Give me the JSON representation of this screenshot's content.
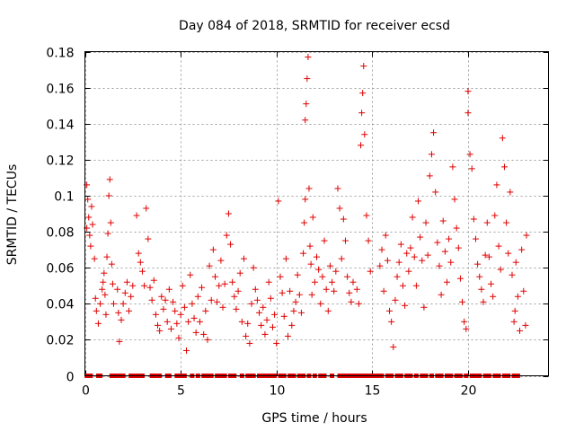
{
  "chart_data": {
    "type": "scatter",
    "title": "Day 084 of 2018, SRMTID for receiver ecsd",
    "xlabel": "GPS time / hours",
    "ylabel": "SRMTID / TECUs",
    "xlim": [
      0,
      24.2
    ],
    "ylim": [
      0,
      0.18
    ],
    "x_ticks": [
      0,
      5,
      10,
      15,
      20
    ],
    "x_tick_labels": [
      "0",
      "5",
      "10",
      "15",
      "20"
    ],
    "y_ticks": [
      0,
      0.02,
      0.04,
      0.06,
      0.08,
      0.1,
      0.12,
      0.14,
      0.16,
      0.18
    ],
    "y_tick_labels": [
      "0",
      "0.02",
      "0.04",
      "0.06",
      "0.08",
      "0.1",
      "0.12",
      "0.14",
      "0.16",
      "0.18"
    ],
    "grid": true,
    "marker": "plus",
    "color": "#e00000",
    "series": [
      {
        "name": "SRMTID",
        "points": [
          [
            0.1,
            0.106
          ],
          [
            0.15,
            0.098
          ],
          [
            0.2,
            0.088
          ],
          [
            0.1,
            0.082
          ],
          [
            0.25,
            0.078
          ],
          [
            0.3,
            0.072
          ],
          [
            0.35,
            0.094
          ],
          [
            0.4,
            0.084
          ],
          [
            0.5,
            0.065
          ],
          [
            0.55,
            0.043
          ],
          [
            0.6,
            0.036
          ],
          [
            0.7,
            0.029
          ],
          [
            0.8,
            0.04
          ],
          [
            0.9,
            0.048
          ],
          [
            0.95,
            0.052
          ],
          [
            1.0,
            0.057
          ],
          [
            1.05,
            0.045
          ],
          [
            1.1,
            0.034
          ],
          [
            1.15,
            0.066
          ],
          [
            1.2,
            0.079
          ],
          [
            1.25,
            0.1
          ],
          [
            1.3,
            0.109
          ],
          [
            1.35,
            0.085
          ],
          [
            1.4,
            0.062
          ],
          [
            1.45,
            0.051
          ],
          [
            1.5,
            0.04
          ],
          [
            1.7,
            0.048
          ],
          [
            1.75,
            0.035
          ],
          [
            1.8,
            0.019
          ],
          [
            1.9,
            0.031
          ],
          [
            2.0,
            0.04
          ],
          [
            2.1,
            0.046
          ],
          [
            2.2,
            0.052
          ],
          [
            2.3,
            0.036
          ],
          [
            2.4,
            0.044
          ],
          [
            2.5,
            0.05
          ],
          [
            2.7,
            0.089
          ],
          [
            2.8,
            0.068
          ],
          [
            2.9,
            0.063
          ],
          [
            3.0,
            0.058
          ],
          [
            3.1,
            0.05
          ],
          [
            3.2,
            0.093
          ],
          [
            3.3,
            0.076
          ],
          [
            3.4,
            0.049
          ],
          [
            3.5,
            0.042
          ],
          [
            3.6,
            0.053
          ],
          [
            3.7,
            0.034
          ],
          [
            3.8,
            0.028
          ],
          [
            3.9,
            0.025
          ],
          [
            4.0,
            0.044
          ],
          [
            4.1,
            0.037
          ],
          [
            4.2,
            0.042
          ],
          [
            4.3,
            0.03
          ],
          [
            4.4,
            0.048
          ],
          [
            4.5,
            0.026
          ],
          [
            4.6,
            0.041
          ],
          [
            4.7,
            0.036
          ],
          [
            4.8,
            0.029
          ],
          [
            4.9,
            0.021
          ],
          [
            5.0,
            0.034
          ],
          [
            5.1,
            0.05
          ],
          [
            5.2,
            0.038
          ],
          [
            5.3,
            0.014
          ],
          [
            5.4,
            0.03
          ],
          [
            5.5,
            0.056
          ],
          [
            5.6,
            0.04
          ],
          [
            5.7,
            0.032
          ],
          [
            5.8,
            0.024
          ],
          [
            5.9,
            0.044
          ],
          [
            6.0,
            0.03
          ],
          [
            6.1,
            0.049
          ],
          [
            6.2,
            0.023
          ],
          [
            6.3,
            0.036
          ],
          [
            6.4,
            0.02
          ],
          [
            6.5,
            0.061
          ],
          [
            6.6,
            0.042
          ],
          [
            6.7,
            0.07
          ],
          [
            6.8,
            0.055
          ],
          [
            6.9,
            0.041
          ],
          [
            7.0,
            0.05
          ],
          [
            7.1,
            0.064
          ],
          [
            7.2,
            0.038
          ],
          [
            7.3,
            0.051
          ],
          [
            7.4,
            0.078
          ],
          [
            7.5,
            0.09
          ],
          [
            7.6,
            0.073
          ],
          [
            7.7,
            0.052
          ],
          [
            7.8,
            0.044
          ],
          [
            7.9,
            0.037
          ],
          [
            8.0,
            0.047
          ],
          [
            8.1,
            0.057
          ],
          [
            8.2,
            0.03
          ],
          [
            8.3,
            0.065
          ],
          [
            8.4,
            0.022
          ],
          [
            8.5,
            0.029
          ],
          [
            8.6,
            0.018
          ],
          [
            8.7,
            0.04
          ],
          [
            8.8,
            0.06
          ],
          [
            8.9,
            0.048
          ],
          [
            9.0,
            0.042
          ],
          [
            9.1,
            0.035
          ],
          [
            9.2,
            0.028
          ],
          [
            9.3,
            0.038
          ],
          [
            9.4,
            0.023
          ],
          [
            9.5,
            0.031
          ],
          [
            9.6,
            0.052
          ],
          [
            9.7,
            0.043
          ],
          [
            9.8,
            0.027
          ],
          [
            9.9,
            0.034
          ],
          [
            10.0,
            0.018
          ],
          [
            10.1,
            0.097
          ],
          [
            10.2,
            0.055
          ],
          [
            10.3,
            0.046
          ],
          [
            10.4,
            0.033
          ],
          [
            10.5,
            0.065
          ],
          [
            10.6,
            0.022
          ],
          [
            10.7,
            0.047
          ],
          [
            10.8,
            0.028
          ],
          [
            10.9,
            0.036
          ],
          [
            11.0,
            0.041
          ],
          [
            11.1,
            0.056
          ],
          [
            11.2,
            0.045
          ],
          [
            11.3,
            0.035
          ],
          [
            11.4,
            0.068
          ],
          [
            11.45,
            0.085
          ],
          [
            11.5,
            0.098
          ],
          [
            11.5,
            0.142
          ],
          [
            11.55,
            0.151
          ],
          [
            11.6,
            0.165
          ],
          [
            11.65,
            0.177
          ],
          [
            11.7,
            0.104
          ],
          [
            11.75,
            0.072
          ],
          [
            11.8,
            0.062
          ],
          [
            11.85,
            0.045
          ],
          [
            11.9,
            0.088
          ],
          [
            12.0,
            0.052
          ],
          [
            12.1,
            0.066
          ],
          [
            12.2,
            0.059
          ],
          [
            12.3,
            0.04
          ],
          [
            12.4,
            0.055
          ],
          [
            12.5,
            0.075
          ],
          [
            12.6,
            0.048
          ],
          [
            12.7,
            0.036
          ],
          [
            12.8,
            0.061
          ],
          [
            12.9,
            0.052
          ],
          [
            13.0,
            0.047
          ],
          [
            13.1,
            0.058
          ],
          [
            13.2,
            0.104
          ],
          [
            13.3,
            0.093
          ],
          [
            13.4,
            0.065
          ],
          [
            13.5,
            0.087
          ],
          [
            13.6,
            0.075
          ],
          [
            13.7,
            0.055
          ],
          [
            13.8,
            0.046
          ],
          [
            13.9,
            0.041
          ],
          [
            14.0,
            0.052
          ],
          [
            14.2,
            0.048
          ],
          [
            14.3,
            0.04
          ],
          [
            14.4,
            0.128
          ],
          [
            14.45,
            0.146
          ],
          [
            14.5,
            0.157
          ],
          [
            14.55,
            0.172
          ],
          [
            14.6,
            0.134
          ],
          [
            14.7,
            0.089
          ],
          [
            14.8,
            0.075
          ],
          [
            14.9,
            0.058
          ],
          [
            15.4,
            0.061
          ],
          [
            15.5,
            0.07
          ],
          [
            15.6,
            0.047
          ],
          [
            15.7,
            0.078
          ],
          [
            15.8,
            0.064
          ],
          [
            15.9,
            0.036
          ],
          [
            16.0,
            0.03
          ],
          [
            16.1,
            0.016
          ],
          [
            16.2,
            0.042
          ],
          [
            16.3,
            0.055
          ],
          [
            16.4,
            0.063
          ],
          [
            16.5,
            0.073
          ],
          [
            16.6,
            0.05
          ],
          [
            16.7,
            0.039
          ],
          [
            16.8,
            0.068
          ],
          [
            16.9,
            0.058
          ],
          [
            17.0,
            0.071
          ],
          [
            17.1,
            0.088
          ],
          [
            17.2,
            0.066
          ],
          [
            17.3,
            0.05
          ],
          [
            17.4,
            0.097
          ],
          [
            17.5,
            0.077
          ],
          [
            17.6,
            0.064
          ],
          [
            17.7,
            0.038
          ],
          [
            17.8,
            0.085
          ],
          [
            17.9,
            0.067
          ],
          [
            18.0,
            0.111
          ],
          [
            18.1,
            0.123
          ],
          [
            18.2,
            0.135
          ],
          [
            18.3,
            0.102
          ],
          [
            18.4,
            0.074
          ],
          [
            18.5,
            0.061
          ],
          [
            18.6,
            0.045
          ],
          [
            18.7,
            0.086
          ],
          [
            18.8,
            0.069
          ],
          [
            18.9,
            0.052
          ],
          [
            19.0,
            0.076
          ],
          [
            19.1,
            0.063
          ],
          [
            19.2,
            0.116
          ],
          [
            19.3,
            0.098
          ],
          [
            19.4,
            0.082
          ],
          [
            19.5,
            0.071
          ],
          [
            19.6,
            0.054
          ],
          [
            19.7,
            0.041
          ],
          [
            19.8,
            0.03
          ],
          [
            19.9,
            0.026
          ],
          [
            20.0,
            0.146
          ],
          [
            20.0,
            0.158
          ],
          [
            20.1,
            0.123
          ],
          [
            20.2,
            0.115
          ],
          [
            20.3,
            0.087
          ],
          [
            20.4,
            0.076
          ],
          [
            20.5,
            0.062
          ],
          [
            20.6,
            0.055
          ],
          [
            20.7,
            0.048
          ],
          [
            20.8,
            0.041
          ],
          [
            20.9,
            0.067
          ],
          [
            21.0,
            0.085
          ],
          [
            21.1,
            0.066
          ],
          [
            21.2,
            0.051
          ],
          [
            21.3,
            0.044
          ],
          [
            21.4,
            0.089
          ],
          [
            21.5,
            0.106
          ],
          [
            21.6,
            0.072
          ],
          [
            21.7,
            0.059
          ],
          [
            21.8,
            0.132
          ],
          [
            21.9,
            0.116
          ],
          [
            22.0,
            0.085
          ],
          [
            22.1,
            0.068
          ],
          [
            22.2,
            0.102
          ],
          [
            22.3,
            0.056
          ],
          [
            22.4,
            0.03
          ],
          [
            22.45,
            0.036
          ],
          [
            22.5,
            0.063
          ],
          [
            22.6,
            0.044
          ],
          [
            22.7,
            0.025
          ],
          [
            22.8,
            0.07
          ],
          [
            22.9,
            0.047
          ],
          [
            23.0,
            0.028
          ],
          [
            23.05,
            0.078
          ]
        ],
        "zero_points_x": [
          0.1,
          0.3,
          0.7,
          0.8,
          1.4,
          1.6,
          1.8,
          2.0,
          2.4,
          2.6,
          2.8,
          3.0,
          3.5,
          3.7,
          3.9,
          4.3,
          4.4,
          4.8,
          5.0,
          5.2,
          5.6,
          5.9,
          6.2,
          6.4,
          6.6,
          6.9,
          7.1,
          7.3,
          7.6,
          7.8,
          8.2,
          8.5,
          8.7,
          8.8,
          9.1,
          9.3,
          9.5,
          9.7,
          9.9,
          10.2,
          10.4,
          10.7,
          10.9,
          11.2,
          11.4,
          11.7,
          12.0,
          12.3,
          12.5,
          12.9,
          13.3,
          13.5,
          13.7,
          13.9,
          14.0,
          14.2,
          14.4,
          14.6,
          14.8,
          15.0,
          15.2,
          15.4,
          15.5,
          15.8,
          16.0,
          16.3,
          16.5,
          16.8,
          17.0,
          17.3,
          17.6,
          17.8,
          18.1,
          18.4,
          18.6,
          18.9,
          19.1,
          19.4,
          19.6,
          19.9,
          20.2,
          20.4,
          20.6,
          20.9,
          21.1,
          21.4,
          21.6,
          21.9,
          22.1,
          22.4,
          22.6
        ]
      }
    ]
  }
}
